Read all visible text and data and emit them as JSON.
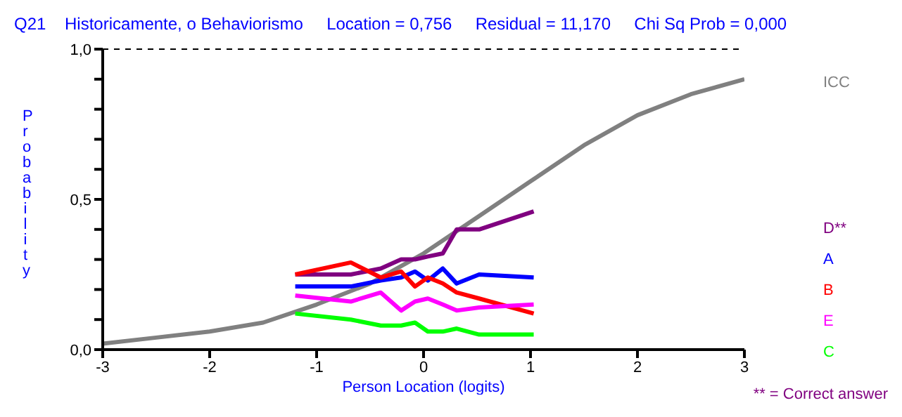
{
  "chart_data": {
    "type": "line",
    "title": "Q21    Historicamente, o Behaviorismo     Location = 0,756     Residual = 11,170     Chi Sq Prob = 0,000",
    "xlabel": "Person Location (logits)",
    "ylabel": "Probability",
    "xlim": [
      -3,
      3
    ],
    "xticks": [
      -3,
      -2,
      -1,
      0,
      1,
      2,
      3
    ],
    "ylim": [
      0,
      1
    ],
    "yticks": [
      {
        "value": 0,
        "label": "0,0"
      },
      {
        "value": 0.1,
        "label": null
      },
      {
        "value": 0.2,
        "label": null
      },
      {
        "value": 0.3,
        "label": null
      },
      {
        "value": 0.4,
        "label": null
      },
      {
        "value": 0.5,
        "label": "0,5"
      },
      {
        "value": 0.6,
        "label": null
      },
      {
        "value": 0.7,
        "label": null
      },
      {
        "value": 0.8,
        "label": null
      },
      {
        "value": 0.9,
        "label": null
      },
      {
        "value": 1,
        "label": "1,0"
      }
    ],
    "grid": false,
    "legend": "right",
    "marker": "none",
    "line_style": "solid",
    "ref_lines": [
      {
        "axis": "y",
        "value": 1,
        "color": "#000000",
        "line_style": "dashed"
      }
    ],
    "annotations": [
      "** = Correct answer"
    ],
    "series": [
      {
        "name": "ICC",
        "color": "#808080",
        "x": [
          -3,
          -2.5,
          -2,
          -1.5,
          -1,
          -0.5,
          0,
          0.5,
          1,
          1.5,
          2,
          2.5,
          3
        ],
        "values": [
          0.02,
          0.04,
          0.06,
          0.09,
          0.15,
          0.22,
          0.32,
          0.44,
          0.56,
          0.68,
          0.78,
          0.85,
          0.9
        ]
      },
      {
        "name": "D**",
        "color": "#800080",
        "x": [
          -1.2,
          -0.68,
          -0.4,
          -0.21,
          -0.08,
          0.04,
          0.18,
          0.31,
          0.52,
          1.03
        ],
        "values": [
          0.25,
          0.25,
          0.27,
          0.3,
          0.3,
          0.31,
          0.32,
          0.4,
          0.4,
          0.46
        ]
      },
      {
        "name": "A",
        "color": "#0000ff",
        "x": [
          -1.2,
          -0.68,
          -0.4,
          -0.21,
          -0.08,
          0.04,
          0.18,
          0.31,
          0.52,
          1.03
        ],
        "values": [
          0.21,
          0.21,
          0.23,
          0.24,
          0.26,
          0.23,
          0.27,
          0.22,
          0.25,
          0.24
        ]
      },
      {
        "name": "B",
        "color": "#ff0000",
        "x": [
          -1.2,
          -0.68,
          -0.4,
          -0.21,
          -0.08,
          0.04,
          0.18,
          0.31,
          0.52,
          1.03
        ],
        "values": [
          0.25,
          0.29,
          0.24,
          0.26,
          0.21,
          0.24,
          0.22,
          0.19,
          0.17,
          0.12
        ]
      },
      {
        "name": "E",
        "color": "#ff00ff",
        "x": [
          -1.2,
          -0.68,
          -0.4,
          -0.21,
          -0.08,
          0.04,
          0.18,
          0.31,
          0.52,
          1.03
        ],
        "values": [
          0.18,
          0.16,
          0.19,
          0.13,
          0.16,
          0.17,
          0.15,
          0.13,
          0.14,
          0.15
        ]
      },
      {
        "name": "C",
        "color": "#00ff00",
        "x": [
          -1.2,
          -0.68,
          -0.4,
          -0.21,
          -0.08,
          0.04,
          0.18,
          0.31,
          0.52,
          1.03
        ],
        "values": [
          0.12,
          0.1,
          0.08,
          0.08,
          0.09,
          0.06,
          0.06,
          0.07,
          0.05,
          0.05
        ]
      }
    ]
  }
}
